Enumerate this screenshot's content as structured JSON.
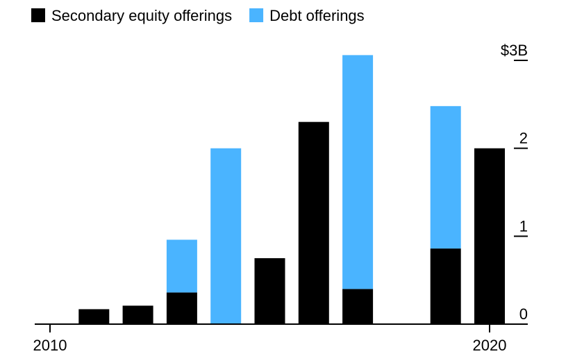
{
  "chart_data": {
    "type": "stacked_bar",
    "categories": [
      "2010",
      null,
      null,
      null,
      null,
      null,
      null,
      null,
      null,
      null,
      "2020"
    ],
    "series": [
      {
        "name": "Secondary equity offerings",
        "color": "#000000",
        "values": [
          0,
          0.17,
          0.21,
          0.36,
          0,
          0.75,
          2.3,
          0.4,
          0,
          0.86,
          2.0
        ]
      },
      {
        "name": "Debt offerings",
        "color": "#4ab4ff",
        "values": [
          0,
          0,
          0,
          0.6,
          2.0,
          0,
          0,
          2.66,
          0,
          1.62,
          0
        ]
      }
    ],
    "ylim": [
      0,
      3
    ],
    "yticks": [
      0,
      1,
      2,
      {
        "value": 3,
        "label": "$3B"
      }
    ]
  }
}
